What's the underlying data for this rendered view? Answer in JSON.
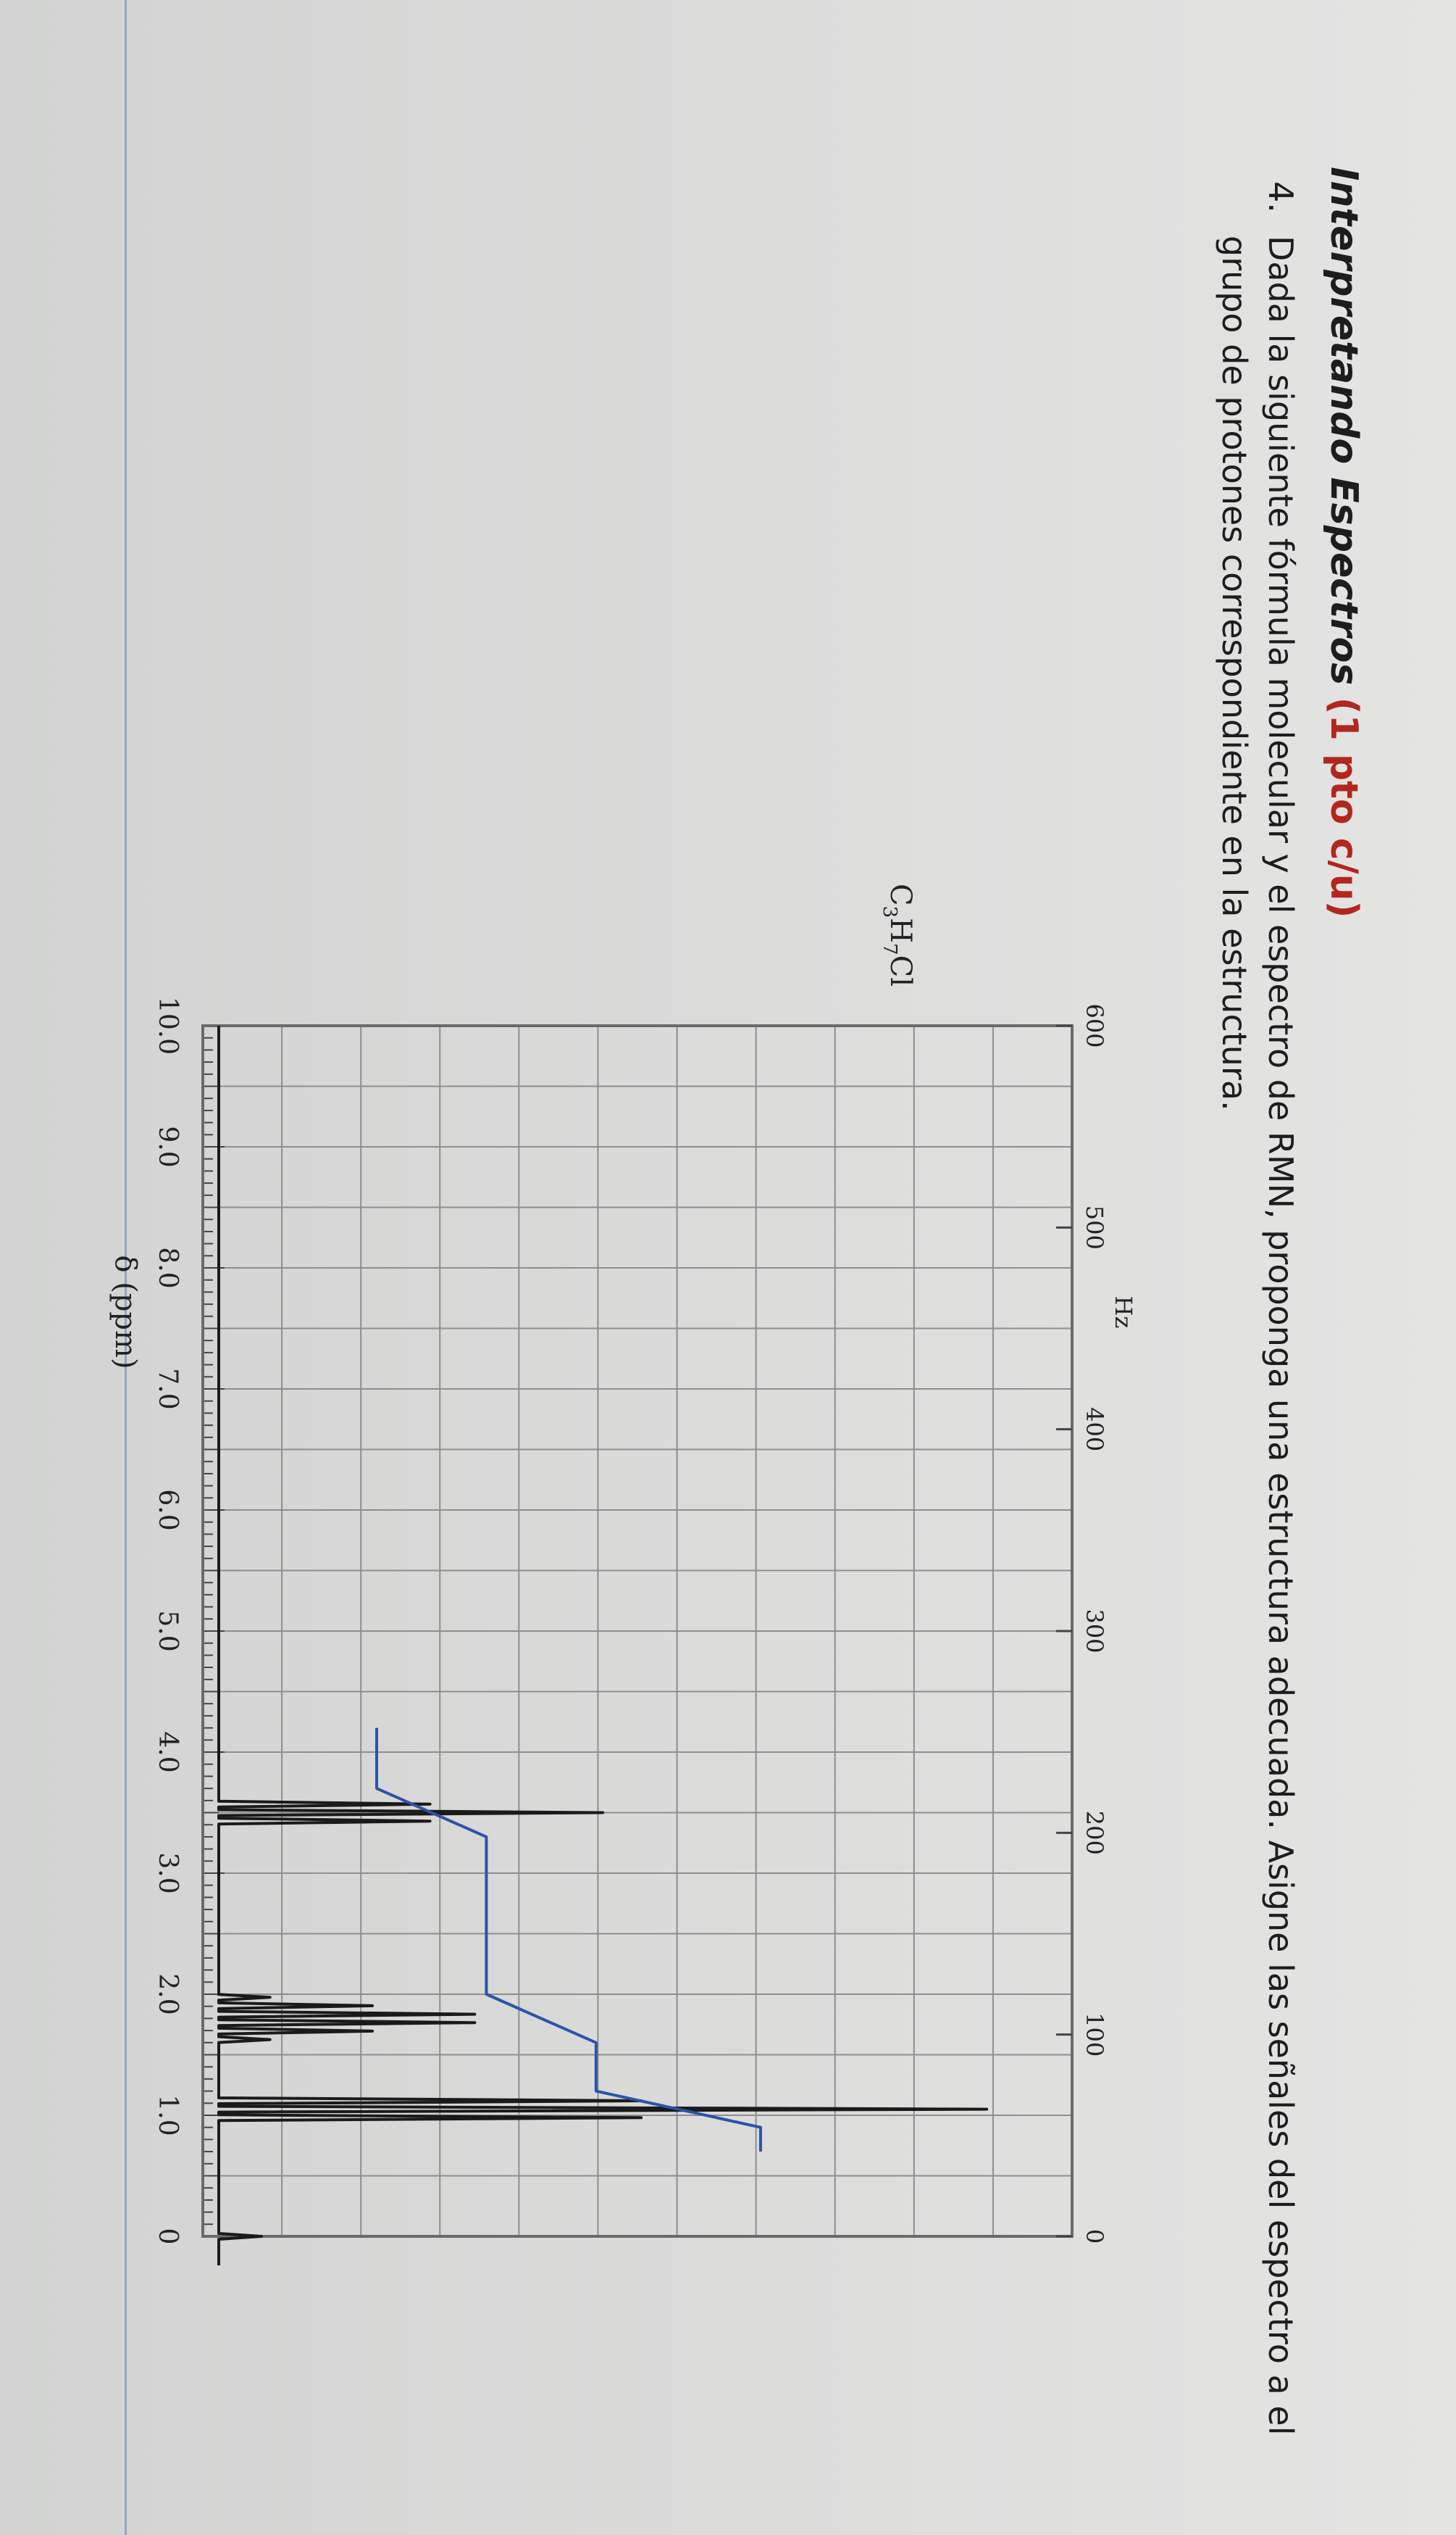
{
  "heading": {
    "title": "Interpretando Espectros",
    "points": "(1 pto c/u)"
  },
  "question": {
    "number": "4.",
    "text": "Dada la siguiente fórmula molecular y el espectro de RMN, proponga una estructura adecuada. Asigne las señales del espectro a el grupo de protones correspondiente en la estructura."
  },
  "chart_data": {
    "type": "line",
    "formula_label": "C3H7Cl",
    "xlabel": "δ (ppm)",
    "top_axis_label": "Hz",
    "xlim": [
      10.0,
      0.0
    ],
    "ppm_ticks": [
      "10.0",
      "9.0",
      "8.0",
      "7.0",
      "6.0",
      "5.0",
      "4.0",
      "3.0",
      "2.0",
      "1.0",
      "0"
    ],
    "hz_ticks": [
      "600",
      "500",
      "400",
      "300",
      "200",
      "100",
      "0"
    ],
    "grid": true,
    "peaks": [
      {
        "ppm": 3.5,
        "multiplicity": "triplet",
        "relative_height": 0.45
      },
      {
        "ppm": 1.8,
        "multiplicity": "sextet",
        "relative_height": 0.3
      },
      {
        "ppm": 1.05,
        "multiplicity": "triplet",
        "relative_height": 0.9
      },
      {
        "ppm": 0.0,
        "multiplicity": "singlet",
        "relative_height": 0.05
      }
    ],
    "integration": [
      {
        "ppm_range": [
          3.7,
          3.3
        ],
        "relative_area": 2
      },
      {
        "ppm_range": [
          2.0,
          1.6
        ],
        "relative_area": 2
      },
      {
        "ppm_range": [
          1.2,
          0.9
        ],
        "relative_area": 3
      }
    ],
    "colors": {
      "spectrum": "#1a1a1a",
      "integral": "#2a55a8",
      "grid": "#8e8e8e"
    }
  }
}
